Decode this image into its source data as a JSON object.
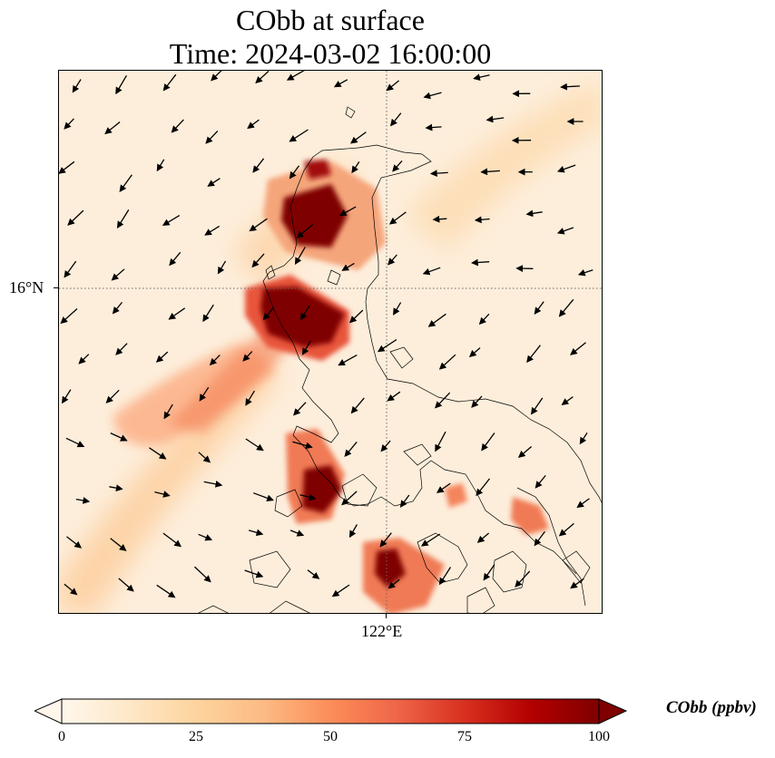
{
  "title": {
    "line1": "CObb at surface",
    "line2": "Time: 2024-03-02 16:00:00"
  },
  "axes": {
    "lat_tick_label": "16°N",
    "lon_tick_label": "122°E",
    "gridlines": "dotted"
  },
  "colorbar": {
    "label": "CObb (ppbv)",
    "ticks": [
      "0",
      "25",
      "50",
      "75",
      "100"
    ],
    "min": 0,
    "max": 100,
    "extend": "both",
    "colormap": "OrRd",
    "stops": [
      "#fff7ec",
      "#fee8c8",
      "#fdd49e",
      "#fdbb84",
      "#fc8d59",
      "#ef6548",
      "#d7301f",
      "#b30000",
      "#7f0000"
    ]
  },
  "map": {
    "background_color": "#fde9cf",
    "plume_colors": {
      "light": "#fdd0a2",
      "mid": "#f4845c",
      "high": "#c8231b",
      "max": "#7f0000"
    },
    "wind_arrows": "north-east to south-west flow"
  }
}
